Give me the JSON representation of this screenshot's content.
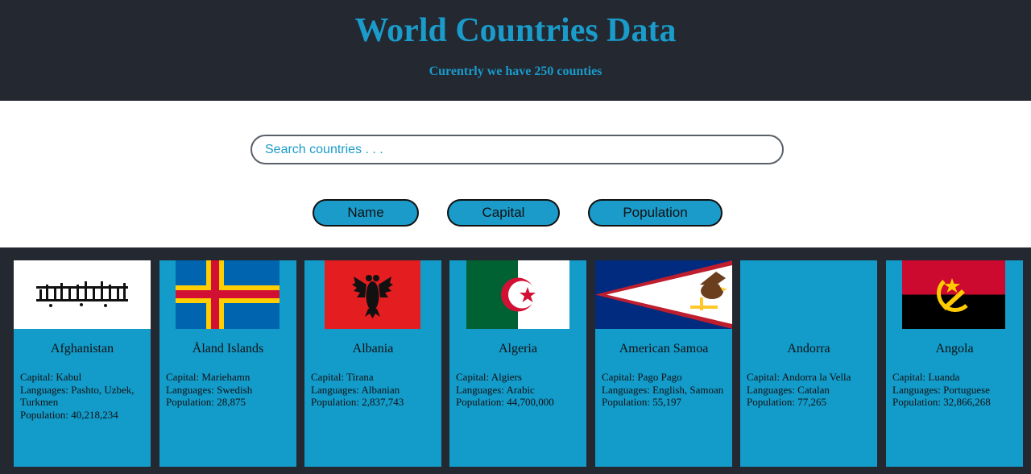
{
  "header": {
    "title": "World Countries Data",
    "subtitle": "Curentrly we have 250 counties"
  },
  "search": {
    "placeholder": "Search countries . . ."
  },
  "sort_buttons": {
    "name": "Name",
    "capital": "Capital",
    "population": "Population"
  },
  "colors": {
    "dark": "#232831",
    "accent": "#1a9bca",
    "card": "#139bca"
  },
  "countries": [
    {
      "name": "Afghanistan",
      "capital": "Capital: Kabul",
      "languages": "Languages: Pashto, Uzbek, Turkmen",
      "population": "Population: 40,218,234"
    },
    {
      "name": "Åland Islands",
      "capital": "Capital: Mariehamn",
      "languages": "Languages: Swedish",
      "population": "Population: 28,875"
    },
    {
      "name": "Albania",
      "capital": "Capital: Tirana",
      "languages": "Languages: Albanian",
      "population": "Population: 2,837,743"
    },
    {
      "name": "Algeria",
      "capital": "Capital: Algiers",
      "languages": "Languages: Arabic",
      "population": "Population: 44,700,000"
    },
    {
      "name": "American Samoa",
      "capital": "Capital: Pago Pago",
      "languages": "Languages: English, Samoan",
      "population": "Population: 55,197"
    },
    {
      "name": "Andorra",
      "capital": "Capital: Andorra la Vella",
      "languages": "Languages: Catalan",
      "population": "Population: 77,265"
    },
    {
      "name": "Angola",
      "capital": "Capital: Luanda",
      "languages": "Languages: Portuguese",
      "population": "Population: 32,866,268"
    }
  ]
}
